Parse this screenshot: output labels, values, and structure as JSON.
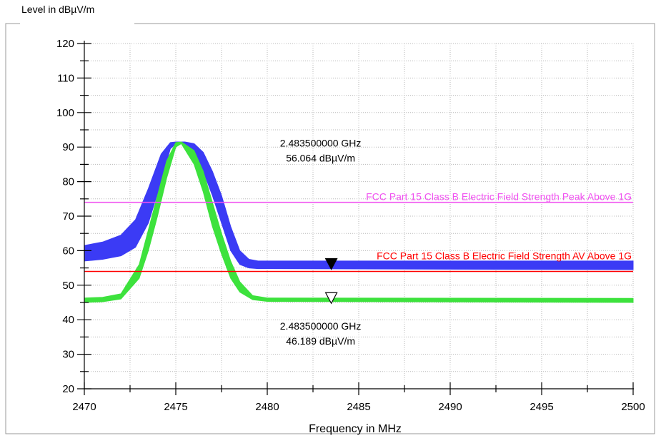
{
  "chart_data": {
    "type": "line",
    "ylabel": "Level in dBµV/m",
    "xlabel": "Frequency in MHz",
    "xlim": [
      2470,
      2500
    ],
    "ylim": [
      20,
      120
    ],
    "x_ticks": [
      2470,
      2475,
      2480,
      2485,
      2490,
      2495,
      2500
    ],
    "y_ticks": [
      20,
      30,
      40,
      50,
      60,
      70,
      80,
      90,
      100,
      110,
      120
    ],
    "grid": true,
    "series": [
      {
        "color": "#3b3bf5",
        "style": "peak-band",
        "points": [
          [
            2470.0,
            57.0,
            61.5
          ],
          [
            2471.0,
            57.5,
            62.5
          ],
          [
            2472.0,
            58.5,
            64.5
          ],
          [
            2472.8,
            61.0,
            69.0
          ],
          [
            2473.5,
            68.0,
            78.0
          ],
          [
            2474.2,
            80.0,
            88.0
          ],
          [
            2474.7,
            89.5,
            91.3
          ],
          [
            2475.0,
            91.0,
            91.5
          ],
          [
            2475.5,
            91.0,
            91.5
          ],
          [
            2476.0,
            89.0,
            91.0
          ],
          [
            2476.5,
            83.0,
            88.5
          ],
          [
            2477.0,
            76.0,
            83.0
          ],
          [
            2477.5,
            68.0,
            76.0
          ],
          [
            2478.0,
            60.0,
            67.0
          ],
          [
            2478.5,
            56.0,
            60.0
          ],
          [
            2479.0,
            55.0,
            57.5
          ],
          [
            2479.5,
            54.8,
            57.0
          ],
          [
            2500.0,
            54.5,
            57.0
          ]
        ]
      },
      {
        "color": "#3de23d",
        "style": "average-band",
        "points": [
          [
            2470.0,
            45.0,
            46.3
          ],
          [
            2471.0,
            45.2,
            46.5
          ],
          [
            2472.0,
            46.0,
            47.5
          ],
          [
            2473.0,
            52.0,
            56.0
          ],
          [
            2473.5,
            60.0,
            66.0
          ],
          [
            2474.0,
            70.0,
            76.0
          ],
          [
            2474.5,
            81.0,
            86.0
          ],
          [
            2475.0,
            90.0,
            91.3
          ],
          [
            2475.3,
            91.0,
            91.5
          ],
          [
            2476.0,
            85.0,
            89.0
          ],
          [
            2476.5,
            77.0,
            83.0
          ],
          [
            2477.0,
            67.0,
            74.0
          ],
          [
            2477.5,
            59.0,
            65.0
          ],
          [
            2478.0,
            52.0,
            57.0
          ],
          [
            2478.5,
            48.0,
            51.0
          ],
          [
            2479.2,
            45.8,
            47.0
          ],
          [
            2480.0,
            45.3,
            46.3
          ],
          [
            2500.0,
            45.0,
            46.2
          ]
        ]
      }
    ],
    "limit_lines": [
      {
        "label": "FCC Part 15 Class B Electric Field Strength Peak Above 1G",
        "y": 74,
        "color": "#f050f0"
      },
      {
        "label": "FCC Part 15 Class B Electric Field Strength AV Above 1G",
        "y": 54,
        "color": "#ff0000"
      }
    ],
    "markers": [
      {
        "x": 2483.5,
        "y": 56.064,
        "fill": "#000000"
      },
      {
        "x": 2483.5,
        "y": 46.189,
        "fill": "#ffffff"
      }
    ],
    "annotations": [
      {
        "freq_text": "2.483500000 GHz",
        "level_text": "56.064 dBµV/m",
        "x": 2483.5,
        "y": 91,
        "position": "above"
      },
      {
        "freq_text": "2.483500000 GHz",
        "level_text": "46.189 dBµV/m",
        "x": 2483.5,
        "y": 38,
        "position": "below"
      }
    ]
  }
}
